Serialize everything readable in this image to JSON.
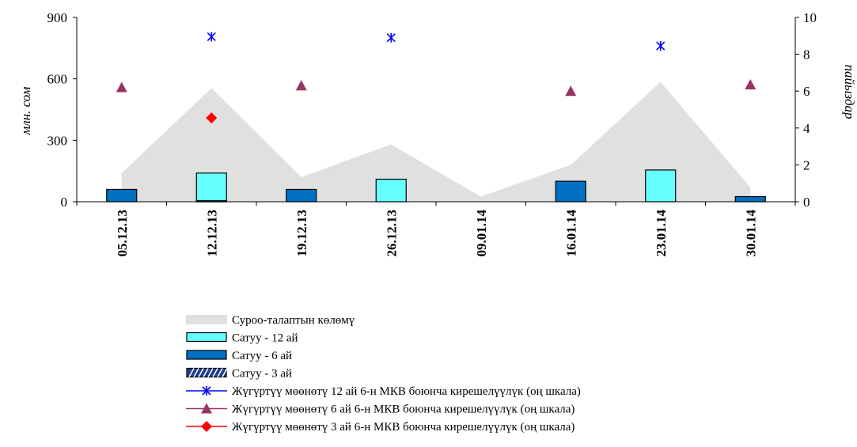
{
  "chart_data": {
    "type": "bar",
    "categories": [
      "05.12.13",
      "12.12.13",
      "19.12.13",
      "26.12.13",
      "09.01.14",
      "16.01.14",
      "23.01.14",
      "30.01.14"
    ],
    "y_left": {
      "label": "млн. сом",
      "lim": [
        0,
        900
      ],
      "ticks": [
        "0",
        "300",
        "600",
        "900"
      ]
    },
    "y_right": {
      "label": "пайыздар",
      "lim": [
        0,
        10
      ],
      "ticks": [
        "0",
        "2",
        "4",
        "6",
        "8",
        "10"
      ]
    },
    "series": [
      {
        "name": "Суроо-талаптын көлөмү",
        "kind": "area",
        "axis": "left",
        "color": "#e0e0e0",
        "values": [
          140,
          555,
          120,
          280,
          25,
          180,
          585,
          70
        ]
      },
      {
        "name": "Сатуу - 12 ай",
        "kind": "bar",
        "axis": "left",
        "color": "#66ffff",
        "values": [
          null,
          140,
          null,
          110,
          null,
          null,
          155,
          null
        ]
      },
      {
        "name": "Сатуу - 6 ай",
        "kind": "bar",
        "axis": "left",
        "color": "#0070c0",
        "values": [
          60,
          5,
          60,
          null,
          null,
          100,
          null,
          25
        ]
      },
      {
        "name": "Сатуу - 3 ай",
        "kind": "bar",
        "axis": "left",
        "color": "#1f3f8f",
        "values": [
          null,
          null,
          null,
          null,
          null,
          null,
          null,
          null
        ]
      },
      {
        "name": "Жүгүртүү мөөнөтү 12 ай 6-н МКВ боюнча кирешелүүлүк (оң шкала)",
        "kind": "point",
        "marker": "star",
        "axis": "right",
        "color": "#0000ff",
        "values": [
          null,
          8.95,
          null,
          8.9,
          null,
          null,
          8.45,
          null
        ]
      },
      {
        "name": "Жүгүртүү мөөнөтү 6 ай 6-н МКВ боюнча кирешелүүлүк (оң шкала)",
        "kind": "point",
        "marker": "triangle",
        "axis": "right",
        "color": "#993366",
        "values": [
          6.2,
          null,
          6.3,
          null,
          null,
          6.0,
          null,
          6.35
        ]
      },
      {
        "name": "Жүгүртүү мөөнөтү 3 ай 6-н МКВ боюнча кирешелүүлүк (оң шкала)",
        "kind": "point",
        "marker": "diamond",
        "axis": "right",
        "color": "#ff0000",
        "values": [
          null,
          4.55,
          null,
          null,
          null,
          null,
          null,
          null
        ]
      }
    ],
    "grid": false,
    "legend_position": "bottom"
  }
}
